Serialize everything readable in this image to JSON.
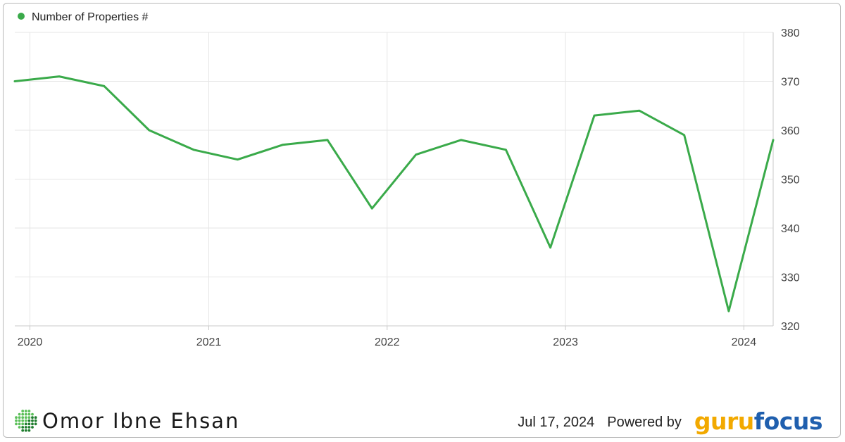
{
  "chart_data": {
    "type": "line",
    "legend": {
      "placement": "top-left"
    },
    "series": [
      {
        "name": "Number of Properties #",
        "color": "#3aaa4a",
        "points": [
          {
            "x": "2019-12",
            "y": 370
          },
          {
            "x": "2020-03",
            "y": 371
          },
          {
            "x": "2020-06",
            "y": 369
          },
          {
            "x": "2020-09",
            "y": 360
          },
          {
            "x": "2020-12",
            "y": 356
          },
          {
            "x": "2021-03",
            "y": 354
          },
          {
            "x": "2021-06",
            "y": 357
          },
          {
            "x": "2021-09",
            "y": 358
          },
          {
            "x": "2021-12",
            "y": 344
          },
          {
            "x": "2022-03",
            "y": 355
          },
          {
            "x": "2022-06",
            "y": 358
          },
          {
            "x": "2022-09",
            "y": 356
          },
          {
            "x": "2022-12",
            "y": 336
          },
          {
            "x": "2023-03",
            "y": 363
          },
          {
            "x": "2023-06",
            "y": 364
          },
          {
            "x": "2023-09",
            "y": 359
          },
          {
            "x": "2023-12",
            "y": 323
          },
          {
            "x": "2024-03",
            "y": 358
          }
        ]
      }
    ],
    "x_ticks": [
      "2020",
      "2021",
      "2022",
      "2023",
      "2024"
    ],
    "y_ticks": [
      320,
      330,
      340,
      350,
      360,
      370,
      380
    ],
    "ylim": [
      320,
      380
    ],
    "y_axis_side": "right",
    "grid": true
  },
  "footer": {
    "author": "Omor Ibne Ehsan",
    "date": "Jul 17, 2024",
    "powered_by": "Powered by",
    "brand_part1": "guru",
    "brand_part2": "focus",
    "brand_colors": {
      "part1": "#f2a900",
      "part2": "#1f5fae"
    }
  }
}
